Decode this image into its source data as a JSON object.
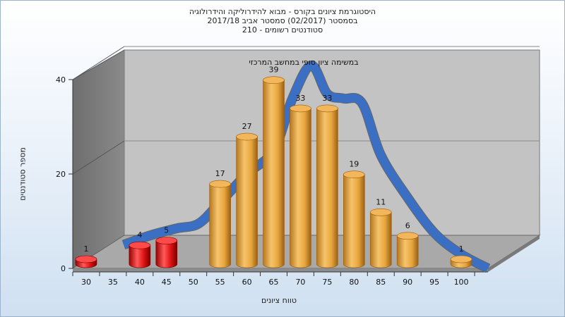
{
  "chart_data": {
    "type": "bar",
    "title_lines": [
      "היסטוגרמת ציונים בקורס - מבוא להידרוליקה והידרולוגיה",
      "בסמסטר  (02/2017)  סמסטר אביב 2017/18",
      "210 - סטודנטים רשומים"
    ],
    "xlabel": "טווח ציונים",
    "ylabel": "מספר סטודנטים",
    "annotation": "במשימה  ציון סופי במחשב המרכזי",
    "x_ticks": [
      "30",
      "35",
      "40",
      "45",
      "50",
      "55",
      "60",
      "65",
      "70",
      "75",
      "80",
      "85",
      "90",
      "95",
      "100"
    ],
    "y_ticks": [
      0,
      20,
      40
    ],
    "ylim": [
      0,
      40
    ],
    "bars": [
      {
        "x": 30,
        "value": 1,
        "color": "red"
      },
      {
        "x": 40,
        "value": 4,
        "color": "red"
      },
      {
        "x": 45,
        "value": 5,
        "color": "red"
      },
      {
        "x": 55,
        "value": 17,
        "color": "orange"
      },
      {
        "x": 60,
        "value": 27,
        "color": "orange"
      },
      {
        "x": 65,
        "value": 39,
        "color": "orange"
      },
      {
        "x": 70,
        "value": 33,
        "color": "orange"
      },
      {
        "x": 75,
        "value": 33,
        "color": "orange"
      },
      {
        "x": 80,
        "value": 19,
        "color": "orange"
      },
      {
        "x": 85,
        "value": 11,
        "color": "orange"
      },
      {
        "x": 90,
        "value": 6,
        "color": "orange"
      },
      {
        "x": 100,
        "value": 1,
        "color": "orange"
      }
    ],
    "curve": {
      "x": [
        37,
        42,
        47,
        51,
        55,
        60,
        65,
        68.5,
        72,
        75,
        78,
        81.5,
        85,
        90,
        95,
        100,
        105
      ],
      "y": [
        5,
        7,
        8.5,
        9.5,
        14,
        20,
        25,
        36,
        43,
        37,
        36,
        35,
        24,
        15,
        7.5,
        3,
        0
      ]
    },
    "colors": {
      "red": "#dd1111",
      "orange": "#e8a63c",
      "curve_blue": "#3a6fc4",
      "curve_gray": "#666666",
      "wall": "#7d7d7d",
      "back_wall": "#c3c3c3",
      "floor": "#a9a9a9"
    },
    "grid": true
  }
}
